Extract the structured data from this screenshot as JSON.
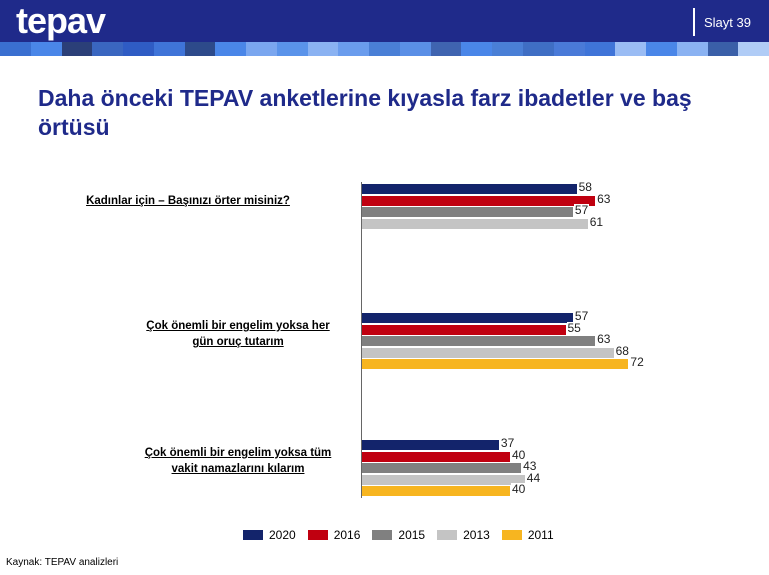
{
  "header": {
    "logo": "tepav",
    "slide": "Slayt 39"
  },
  "title": "Daha önceki TEPAV anketlerine kıyasla farz ibadetler ve baş örtüsü",
  "source": "Kaynak: TEPAV analizleri",
  "chart_data": {
    "type": "bar",
    "orientation": "horizontal",
    "categories": [
      "Kadınlar için – Başınızı örter misiniz?",
      "Çok önemli bir engelim yoksa her gün oruç tutarım",
      "Çok önemli bir engelim yoksa tüm vakit namazlarını kılarım"
    ],
    "series": [
      {
        "name": "2020",
        "color": "#13246b",
        "values": [
          58,
          57,
          37
        ]
      },
      {
        "name": "2016",
        "color": "#c00010",
        "values": [
          63,
          55,
          40
        ]
      },
      {
        "name": "2015",
        "color": "#808080",
        "values": [
          57,
          63,
          43
        ]
      },
      {
        "name": "2013",
        "color": "#c4c4c4",
        "values": [
          61,
          68,
          44
        ]
      },
      {
        "name": "2011",
        "color": "#f7b520",
        "values": [
          null,
          72,
          40
        ]
      }
    ],
    "xlim": [
      0,
      100
    ],
    "legend": "bottom"
  }
}
